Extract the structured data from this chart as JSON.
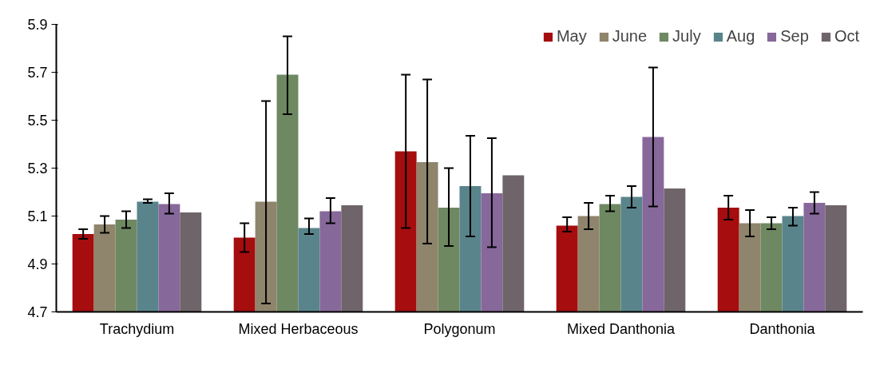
{
  "chart_data": {
    "type": "bar",
    "categories": [
      "Trachydium",
      "Mixed Herbaceous",
      "Polygonum",
      "Mixed Danthonia",
      "Danthonia"
    ],
    "series": [
      {
        "name": "May",
        "color": "#a50d0e",
        "values": [
          5.025,
          5.01,
          5.37,
          5.06,
          5.135
        ],
        "errors": [
          [
            5.005,
            5.045
          ],
          [
            4.95,
            5.07
          ],
          [
            5.05,
            5.69
          ],
          [
            5.035,
            5.095
          ],
          [
            5.085,
            5.185
          ]
        ]
      },
      {
        "name": "June",
        "color": "#8f846c",
        "values": [
          5.065,
          5.16,
          5.325,
          5.1,
          5.07
        ],
        "errors": [
          [
            5.03,
            5.1
          ],
          [
            4.735,
            5.58
          ],
          [
            4.985,
            5.67
          ],
          [
            5.045,
            5.155
          ],
          [
            5.015,
            5.125
          ]
        ]
      },
      {
        "name": "July",
        "color": "#6e8862",
        "values": [
          5.085,
          5.69,
          5.135,
          5.15,
          5.07
        ],
        "errors": [
          [
            5.05,
            5.12
          ],
          [
            5.525,
            5.85
          ],
          [
            4.975,
            5.3
          ],
          [
            5.12,
            5.185
          ],
          [
            5.045,
            5.095
          ]
        ]
      },
      {
        "name": "Aug",
        "color": "#59848b",
        "values": [
          5.16,
          5.05,
          5.225,
          5.18,
          5.1
        ],
        "errors": [
          [
            5.155,
            5.17
          ],
          [
            5.025,
            5.09
          ],
          [
            5.015,
            5.435
          ],
          [
            5.135,
            5.225
          ],
          [
            5.06,
            5.135
          ]
        ]
      },
      {
        "name": "Sep",
        "color": "#87689a",
        "values": [
          5.15,
          5.12,
          5.195,
          5.43,
          5.155
        ],
        "errors": [
          [
            5.11,
            5.195
          ],
          [
            5.07,
            5.175
          ],
          [
            4.97,
            5.425
          ],
          [
            5.14,
            5.72
          ],
          [
            5.11,
            5.2
          ]
        ]
      },
      {
        "name": "Oct",
        "color": "#6e6469",
        "values": [
          5.115,
          5.145,
          5.27,
          5.215,
          5.145
        ],
        "errors": [
          null,
          null,
          null,
          null,
          null
        ]
      }
    ],
    "ylim": [
      4.7,
      5.9
    ],
    "yticks": [
      4.7,
      4.9,
      5.1,
      5.3,
      5.5,
      5.7,
      5.9
    ],
    "grid": false,
    "legend": "top right"
  }
}
